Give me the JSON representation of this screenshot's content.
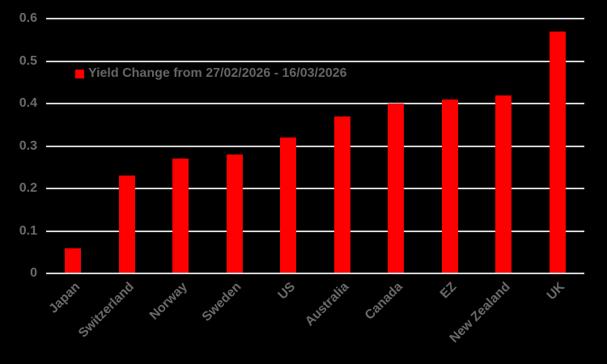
{
  "chart_data": {
    "type": "bar",
    "title": "",
    "categories": [
      "Japan",
      "Switzerland",
      "Norway",
      "Sweden",
      "US",
      "Australia",
      "Canada",
      "EZ",
      "New Zealand",
      "UK"
    ],
    "values": [
      0.06,
      0.23,
      0.27,
      0.28,
      0.32,
      0.37,
      0.4,
      0.41,
      0.42,
      0.57
    ],
    "series_name": "Yield Change from 27/02/2026 - 16/03/2026",
    "xlabel": "",
    "ylabel": "",
    "y_ticks": [
      "0",
      "0.1",
      "0.2",
      "0.3",
      "0.4",
      "0.5",
      "0.6"
    ],
    "ylim": [
      0,
      0.6
    ],
    "grid": true,
    "legend_position": "inside-upper-left",
    "bar_color": "#ff0000",
    "background_color": "#000000",
    "gridline_color": "#d9d9d9",
    "label_color": "#6b6b6b"
  },
  "legend": {
    "label": "Yield Change from 27/02/2026 - 16/03/2026",
    "marker_color": "#ff0000"
  }
}
